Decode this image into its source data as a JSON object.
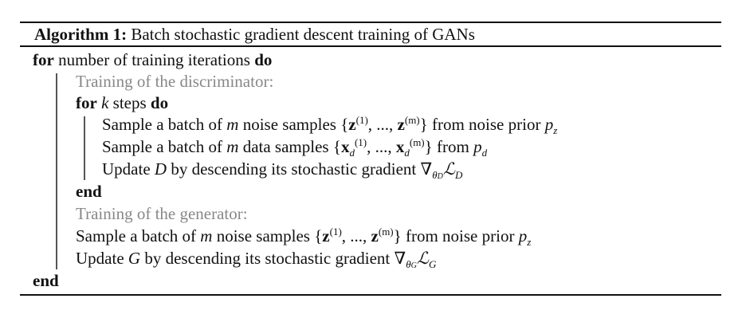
{
  "algorithm": {
    "label": "Algorithm 1:",
    "title": "Batch stochastic gradient descent training of GANs",
    "kw_for": "for",
    "kw_do": "do",
    "kw_end": "end",
    "outer_loop": "number of training iterations",
    "comment_discriminator": "Training of the discriminator:",
    "inner_loop_var": "k",
    "inner_loop_text": "steps",
    "d_sample_noise": {
      "pre": "Sample a batch of",
      "m": "m",
      "mid": "noise samples",
      "set_open": "{",
      "z": "z",
      "sup1": "(1)",
      "dots": ", ..., ",
      "supm": "(m)",
      "set_close": "}",
      "post": "from noise prior",
      "p": "p",
      "sub": "z"
    },
    "d_sample_data": {
      "pre": "Sample a batch of",
      "m": "m",
      "mid": "data samples",
      "set_open": "{",
      "x": "x",
      "xsub": "d",
      "sup1": "(1)",
      "dots": ", ..., ",
      "supm": "(m)",
      "set_close": "}",
      "post": "from",
      "p": "p",
      "sub": "d"
    },
    "d_update": {
      "pre": "Update",
      "var": "D",
      "mid": "by descending its stochastic gradient",
      "nabla": "∇",
      "theta": "θ",
      "theta_sub": "D",
      "loss": "ℒ",
      "loss_sub": "D"
    },
    "comment_generator": "Training of the generator:",
    "g_sample_noise": {
      "pre": "Sample a batch of",
      "m": "m",
      "mid": "noise samples",
      "set_open": "{",
      "z": "z",
      "sup1": "(1)",
      "dots": ", ..., ",
      "supm": "(m)",
      "set_close": "}",
      "post": "from noise prior",
      "p": "p",
      "sub": "z"
    },
    "g_update": {
      "pre": "Update",
      "var": "G",
      "mid": "by descending its stochastic gradient",
      "nabla": "∇",
      "theta": "θ",
      "theta_sub": "G",
      "loss": "ℒ",
      "loss_sub": "G"
    }
  }
}
